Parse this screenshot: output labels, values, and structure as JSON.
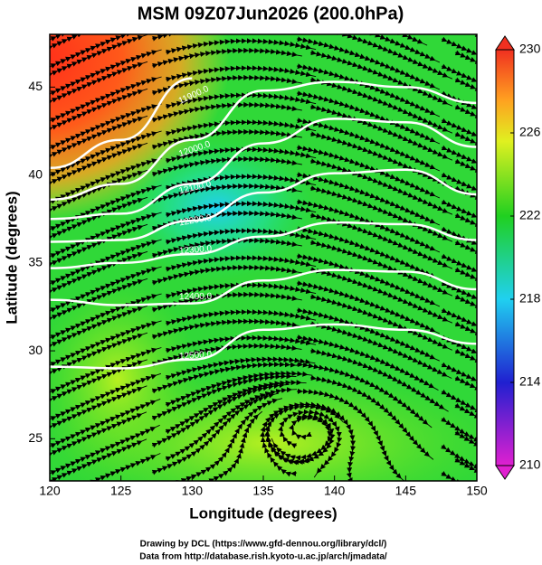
{
  "title": "MSM 09Z07Jun2026 (200.0hPa)",
  "chart_data": {
    "type": "contour",
    "x_label": "Longitude (degrees)",
    "y_label": "Latitude  (degrees)",
    "xlim": [
      120,
      150
    ],
    "ylim": [
      22.6,
      48
    ],
    "xticks": [
      120,
      125,
      130,
      135,
      140,
      145,
      150
    ],
    "yticks": [
      25,
      30,
      35,
      40,
      45
    ],
    "x": [
      120,
      125,
      130,
      135,
      140,
      145,
      150
    ],
    "contours": [
      {
        "label": "11900.0",
        "lat": [
          40.4,
          42.0,
          45.5,
          null,
          null,
          null,
          null
        ]
      },
      {
        "label": "12000.0",
        "lat": [
          38.6,
          39.5,
          42.0,
          44.8,
          45.3,
          45.0,
          44.1
        ]
      },
      {
        "label": "12100.0",
        "lat": [
          37.5,
          37.8,
          39.5,
          41.8,
          43.2,
          43.0,
          41.6
        ]
      },
      {
        "label": "12200.0",
        "lat": [
          36.2,
          36.3,
          37.4,
          39.0,
          40.1,
          40.3,
          38.9
        ]
      },
      {
        "label": "12300.0",
        "lat": [
          34.7,
          35.0,
          35.5,
          36.5,
          37.3,
          37.2,
          36.3
        ]
      },
      {
        "label": "12400.0",
        "lat": [
          32.9,
          32.6,
          32.7,
          34.0,
          34.6,
          34.5,
          33.5
        ]
      },
      {
        "label": "12500.0",
        "lat": [
          29.1,
          29.0,
          29.5,
          31.2,
          31.5,
          31.2,
          30.4
        ]
      }
    ],
    "colorbar": {
      "lim": [
        210,
        230
      ],
      "ticks": [
        210,
        214,
        218,
        222,
        226,
        230
      ]
    }
  },
  "footer": [
    "Drawing by DCL (https://www.gfd-dennou.org/library/dcl/)",
    "Data from http://database.rish.kyoto-u.ac.jp/arch/jmadata/"
  ]
}
